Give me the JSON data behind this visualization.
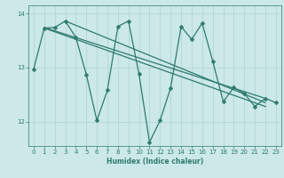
{
  "xlabel": "Humidex (Indice chaleur)",
  "ylabel": "",
  "bg_color": "#cce8e8",
  "grid_color": "#b8d8d8",
  "line_color": "#2d7a6e",
  "xlim": [
    -0.5,
    23.5
  ],
  "ylim": [
    11.55,
    14.15
  ],
  "yticks": [
    12,
    13,
    14
  ],
  "xticks": [
    0,
    1,
    2,
    3,
    4,
    5,
    6,
    7,
    8,
    9,
    10,
    11,
    12,
    13,
    14,
    15,
    16,
    17,
    18,
    19,
    20,
    21,
    22,
    23
  ],
  "zigzag_x": [
    0,
    1,
    2,
    3,
    4,
    5,
    6,
    7,
    8,
    9,
    10,
    11,
    12,
    13,
    14,
    15,
    16,
    17,
    18,
    19,
    20,
    21,
    22,
    23
  ],
  "zigzag_y": [
    12.97,
    13.73,
    13.74,
    13.86,
    13.56,
    12.87,
    12.02,
    12.58,
    13.76,
    13.86,
    12.88,
    11.62,
    12.02,
    12.62,
    13.76,
    13.52,
    13.82,
    13.12,
    12.37,
    12.63,
    12.52,
    12.28,
    12.43,
    12.35
  ],
  "trend1_x": [
    1,
    22
  ],
  "trend1_y": [
    13.74,
    12.43
  ],
  "trend2_x": [
    1,
    22
  ],
  "trend2_y": [
    13.73,
    12.28
  ],
  "trend3_x": [
    3,
    22
  ],
  "trend3_y": [
    13.86,
    12.35
  ],
  "marker_size": 2.5,
  "line_width": 0.9
}
